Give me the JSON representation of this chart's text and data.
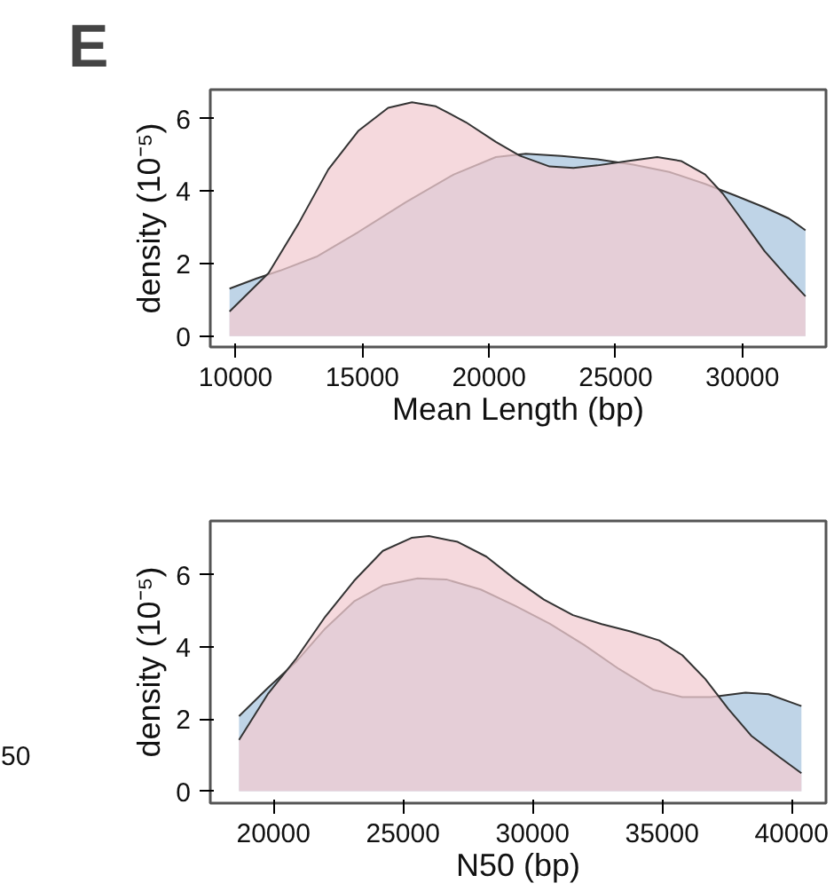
{
  "chart_data": [
    {
      "type": "area",
      "title": "E",
      "xlabel": "Mean Length (bp)",
      "ylabel": "density (10⁻⁵)",
      "xlim": [
        9000,
        33300
      ],
      "ylim": [
        -0.3,
        6.8
      ],
      "xticks": [
        10000,
        15000,
        20000,
        25000,
        30000
      ],
      "yticks": [
        0,
        2,
        4,
        6
      ],
      "grid": false,
      "series": [
        {
          "color": "#a9c6df",
          "x": [
            9760,
            10830,
            11770,
            13190,
            14840,
            16730,
            18610,
            20270,
            21450,
            22860,
            24280,
            25690,
            27110,
            28530,
            29710,
            30880,
            31830,
            32490
          ],
          "values": [
            1.31,
            1.59,
            1.81,
            2.19,
            2.87,
            3.7,
            4.46,
            4.94,
            5.03,
            4.97,
            4.88,
            4.73,
            4.53,
            4.2,
            3.88,
            3.55,
            3.25,
            2.92
          ]
        },
        {
          "color": "#f2ccd1",
          "x": [
            9760,
            11300,
            12480,
            13660,
            14840,
            16020,
            16960,
            17900,
            19090,
            20270,
            21210,
            22390,
            23330,
            24280,
            25460,
            26640,
            27580,
            28530,
            29230,
            29940,
            30880,
            31830,
            32490
          ],
          "values": [
            0.68,
            1.74,
            3.1,
            4.6,
            5.66,
            6.3,
            6.45,
            6.34,
            5.9,
            5.36,
            4.98,
            4.68,
            4.64,
            4.71,
            4.83,
            4.94,
            4.83,
            4.46,
            3.93,
            3.25,
            2.34,
            1.59,
            1.1
          ]
        }
      ]
    },
    {
      "type": "area",
      "xlabel": "N50 (bp)",
      "ylabel": "density (10⁻⁵)",
      "xlim": [
        17560,
        41330
      ],
      "ylim": [
        -0.33,
        7.49
      ],
      "xticks": [
        20000,
        25000,
        30000,
        35000,
        40000
      ],
      "yticks": [
        0,
        2,
        4,
        6
      ],
      "grid": false,
      "annotations": [
        "50"
      ],
      "series": [
        {
          "color": "#a9c6df",
          "x": [
            18670,
            19780,
            20890,
            22000,
            23110,
            24220,
            25560,
            26670,
            28000,
            29330,
            30670,
            32000,
            33330,
            34670,
            35780,
            36890,
            38220,
            39110,
            40380
          ],
          "values": [
            2.08,
            2.86,
            3.6,
            4.51,
            5.26,
            5.7,
            5.9,
            5.87,
            5.59,
            5.14,
            4.64,
            4.05,
            3.39,
            2.81,
            2.61,
            2.61,
            2.73,
            2.69,
            2.36
          ]
        },
        {
          "color": "#f2ccd1",
          "x": [
            18670,
            19780,
            20890,
            22000,
            23110,
            24220,
            25330,
            26000,
            27110,
            28220,
            29330,
            30440,
            31560,
            32670,
            33780,
            34890,
            35780,
            36670,
            37560,
            38440,
            39560,
            40380
          ],
          "values": [
            1.42,
            2.69,
            3.69,
            4.84,
            5.83,
            6.66,
            7.02,
            7.07,
            6.91,
            6.5,
            5.87,
            5.31,
            4.88,
            4.63,
            4.43,
            4.18,
            3.77,
            3.11,
            2.28,
            1.54,
            0.93,
            0.5
          ]
        }
      ]
    }
  ]
}
